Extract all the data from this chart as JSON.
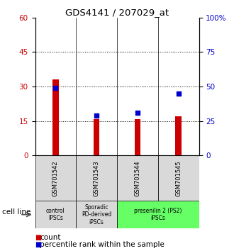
{
  "title": "GDS4141 / 207029_at",
  "samples": [
    "GSM701542",
    "GSM701543",
    "GSM701544",
    "GSM701545"
  ],
  "counts": [
    33,
    16,
    16,
    17
  ],
  "percentiles": [
    49,
    29,
    31,
    45
  ],
  "ylim_left": [
    0,
    60
  ],
  "ylim_right": [
    0,
    100
  ],
  "yticks_left": [
    0,
    15,
    30,
    45,
    60
  ],
  "yticks_right": [
    0,
    25,
    50,
    75,
    100
  ],
  "bar_color": "#cc0000",
  "dot_color": "#0000cc",
  "grid_ticks": [
    15,
    30,
    45
  ],
  "groups": [
    {
      "label": "control\nIPSCs",
      "start": 0,
      "end": 1,
      "color": "#d9d9d9"
    },
    {
      "label": "Sporadic\nPD-derived\niPSCs",
      "start": 1,
      "end": 2,
      "color": "#d9d9d9"
    },
    {
      "label": "presenilin 2 (PS2)\niPSCs",
      "start": 2,
      "end": 4,
      "color": "#66ff66"
    }
  ],
  "cell_line_label": "cell line",
  "legend_count_label": "count",
  "legend_pct_label": "percentile rank within the sample",
  "bar_width": 0.15
}
